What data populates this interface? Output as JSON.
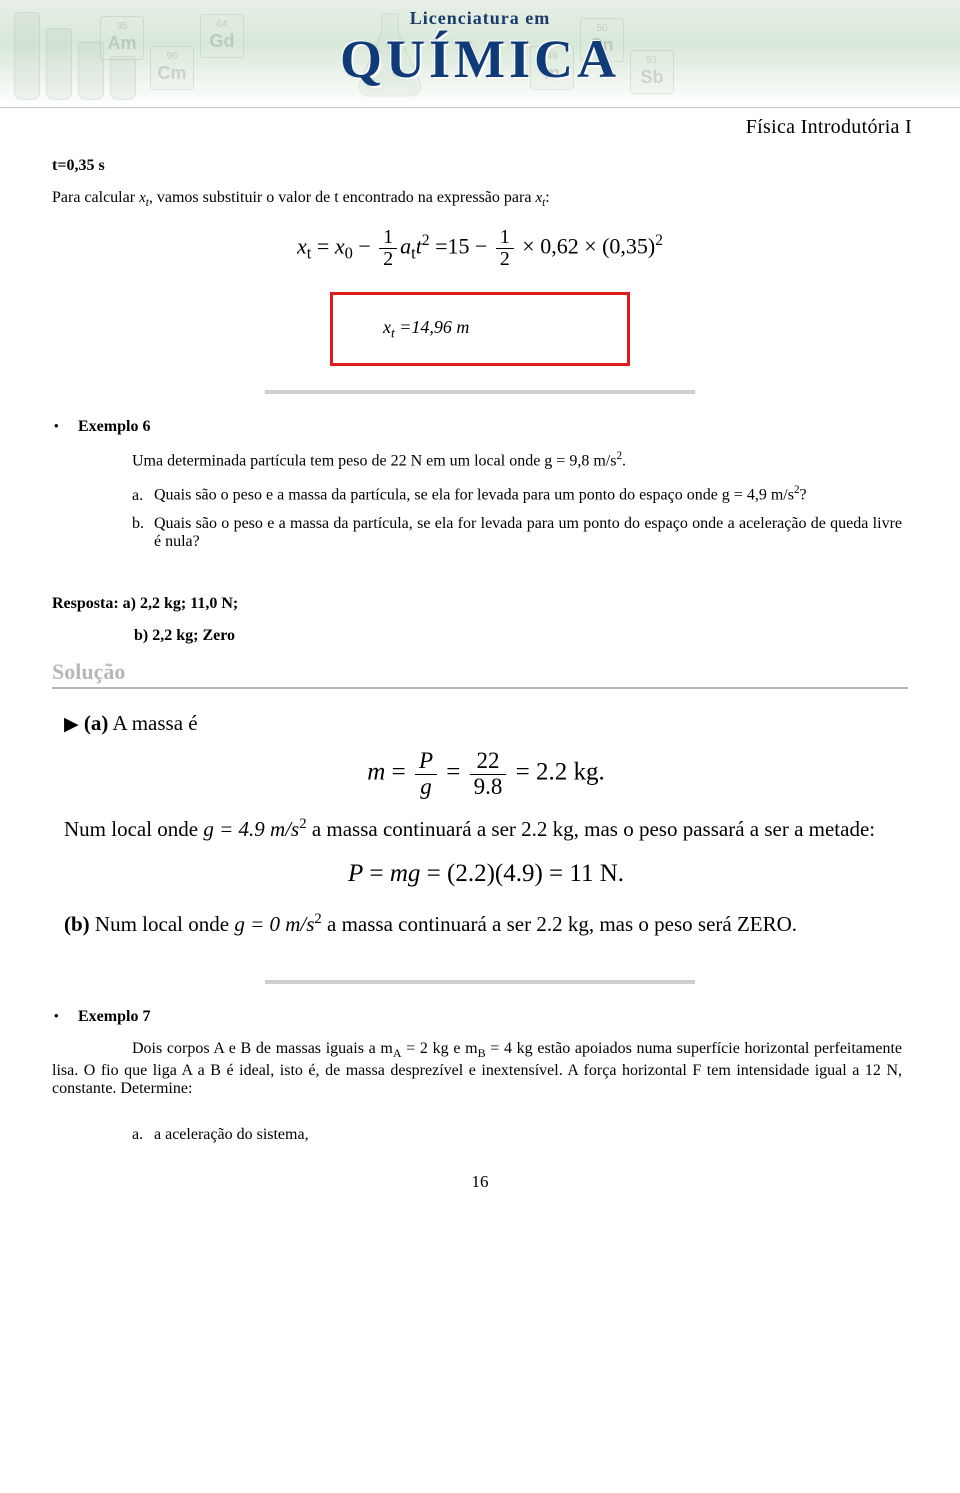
{
  "banner": {
    "licenciatura": "Licenciatura em",
    "quimica": "QUÍMICA",
    "tiles": [
      {
        "num": "95",
        "sym": "Am"
      },
      {
        "num": "96",
        "sym": "Cm"
      },
      {
        "num": "64",
        "sym": "Gd"
      },
      {
        "num": "50",
        "sym": "Sn"
      },
      {
        "num": "51",
        "sym": "Sb"
      },
      {
        "num": "49",
        "sym": "In"
      }
    ]
  },
  "course_title": "Física Introdutória I",
  "line1": "t=0,35 s",
  "line2_a": "Para calcular ",
  "line2_sym1": "x",
  "line2_sub1": "t",
  "line2_b": ", vamos substituir o valor de t encontrado na expressão para ",
  "line2_sym2": "x",
  "line2_sub2": "t",
  "line2_c": ":",
  "eq1": {
    "lhs": "x",
    "lhs_sub": "t",
    "eq": " = ",
    "x0": "x",
    "x0_sub": "0",
    "minus": " − ",
    "half_num": "1",
    "half_den": "2",
    "a": "a",
    "a_sub": "t",
    "t": "t",
    "t_exp": "2",
    "equals2": " =15 − ",
    "val1": " × 0,62 × (0,35)",
    "val_exp": "2"
  },
  "redbox": {
    "x": "x",
    "x_sub": "t",
    "eq": " =",
    "val": "14,96 ",
    "unit": "m"
  },
  "ex6": {
    "heading": "Exemplo 6",
    "intro_a": "Uma determinada partícula tem peso de 22 N em um local onde g = 9,8 m/s",
    "intro_exp": "2",
    "intro_b": ".",
    "a_label": "a.",
    "a_text_1": "Quais são o peso e a massa da partícula, se ela for levada para um ponto do espaço onde g = 4,9 m/s",
    "a_exp": "2",
    "a_text_2": "?",
    "b_label": "b.",
    "b_text": "Quais são o peso e a massa da partícula, se ela for levada para um ponto do espaço onde a aceleração de queda livre é nula?"
  },
  "resposta": {
    "line_a": "Resposta: a) 2,2 kg; 11,0 N;",
    "line_b": "b) 2,2 kg; Zero"
  },
  "solucao_heading": "Solução",
  "sol": {
    "a_arrow": "▶",
    "a_bold": "(a)",
    "a_text": " A massa é",
    "eq_m": {
      "m": "m",
      "eq": " = ",
      "P": "P",
      "g": "g",
      "eq2": " = ",
      "n22": "22",
      "n98": "9.8",
      "eq3": " = 2.2 kg."
    },
    "para1_a": "Num local onde ",
    "para1_g": "g = 4.9 m/s",
    "para1_exp": "2",
    "para1_b": " a massa continuará a ser 2.2 kg, mas o peso passará a ser a metade:",
    "eq_p": "P = mg = (2.2)(4.9) = 11 N.",
    "b_bold": "(b)",
    "b_text_a": " Num local onde ",
    "b_g": "g = 0 m/s",
    "b_exp": "2",
    "b_text_b": " a massa continuará a ser 2.2 kg, mas o peso será ZERO."
  },
  "ex7": {
    "heading": "Exemplo 7",
    "para_a": "Dois corpos A e B de massas iguais a m",
    "sub_a": "A",
    "para_b": " = 2 kg e m",
    "sub_b": "B",
    "para_c": " = 4 kg estão apoiados numa superfície horizontal perfeitamente lisa. O fio que liga A a B é ideal, isto é, de massa desprezível e inextensível. A força horizontal F tem intensidade igual a 12 N, constante. Determine:",
    "item_a_label": "a.",
    "item_a": "a aceleração do sistema,"
  },
  "page_number": "16",
  "colors": {
    "banner_text": "#0f3b78",
    "divider": "#cfcfcf",
    "redbox": "#e21b1b",
    "gray_heading": "#b7b7b7"
  }
}
